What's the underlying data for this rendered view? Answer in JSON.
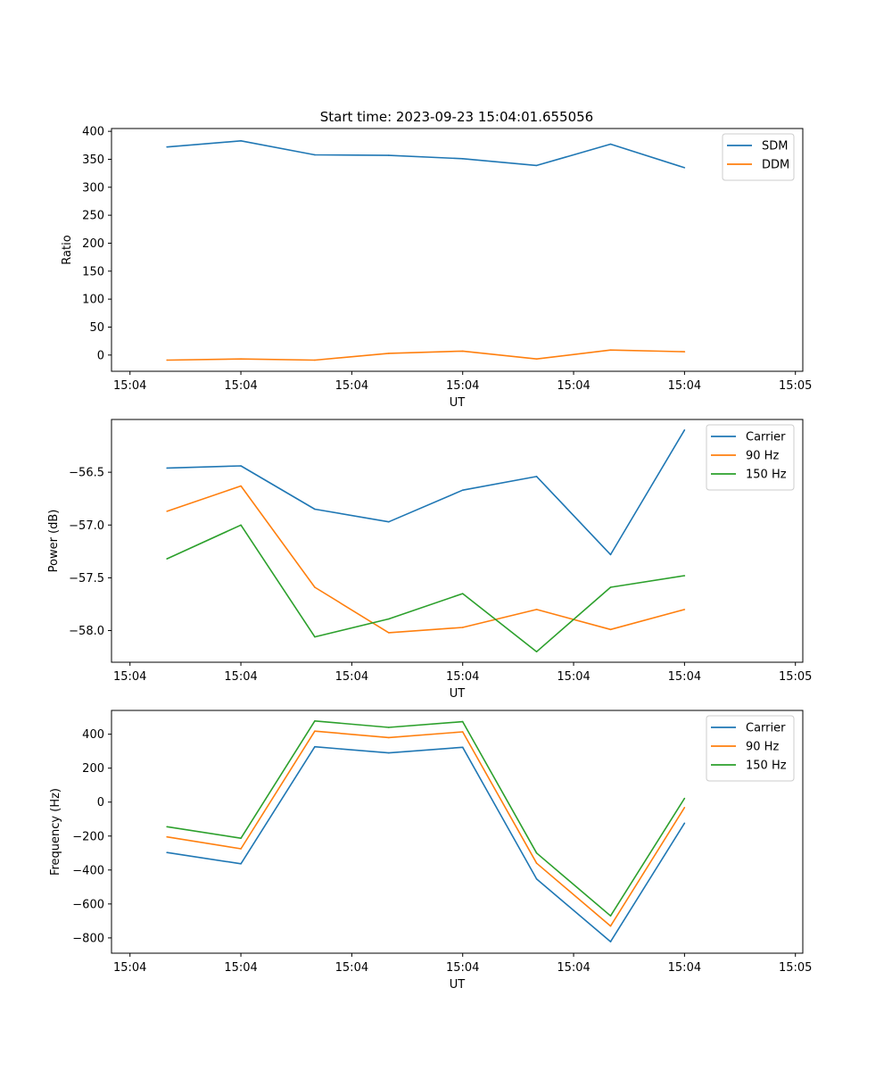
{
  "title": "Start time: 2023-09-23 15:04:01.655056",
  "colors": {
    "blue": "#1f77b4",
    "orange": "#ff7f0e",
    "green": "#2ca02c"
  },
  "chart_data": [
    {
      "type": "line",
      "id": "ratio",
      "ylabel": "Ratio",
      "xlabel": "UT",
      "ylim": [
        -29,
        405
      ],
      "yticks": [
        0,
        50,
        100,
        150,
        200,
        250,
        300,
        350,
        400
      ],
      "ytick_labels": [
        "0",
        "50",
        "100",
        "150",
        "200",
        "250",
        "300",
        "350",
        "400"
      ],
      "xlim": [
        -0.75,
        8.6
      ],
      "xticks": [
        -0.5,
        1.0,
        2.5,
        4.0,
        5.5,
        7.0,
        8.5
      ],
      "xtick_labels": [
        "15:04",
        "15:04",
        "15:04",
        "15:04",
        "15:04",
        "15:04",
        "15:05"
      ],
      "x": [
        0,
        1,
        2,
        3,
        4,
        5,
        6,
        7
      ],
      "legend_position": "top-right",
      "series": [
        {
          "name": "SDM",
          "color": "#1f77b4",
          "values": [
            372,
            383,
            358,
            357,
            351,
            339,
            377,
            335
          ]
        },
        {
          "name": "DDM",
          "color": "#ff7f0e",
          "values": [
            -9,
            -7,
            -9,
            3,
            7,
            -7,
            9,
            6
          ]
        }
      ]
    },
    {
      "type": "line",
      "id": "power",
      "ylabel": "Power (dB)",
      "xlabel": "UT",
      "ylim": [
        -58.3,
        -56.0
      ],
      "yticks": [
        -58.0,
        -57.5,
        -57.0,
        -56.5
      ],
      "ytick_labels": [
        "−58.0",
        "−57.5",
        "−57.0",
        "−56.5"
      ],
      "xlim": [
        -0.75,
        8.6
      ],
      "xticks": [
        -0.5,
        1.0,
        2.5,
        4.0,
        5.5,
        7.0,
        8.5
      ],
      "xtick_labels": [
        "15:04",
        "15:04",
        "15:04",
        "15:04",
        "15:04",
        "15:04",
        "15:05"
      ],
      "x": [
        0,
        1,
        2,
        3,
        4,
        5,
        6,
        7
      ],
      "legend_position": "top-right",
      "series": [
        {
          "name": "Carrier",
          "color": "#1f77b4",
          "values": [
            -56.46,
            -56.44,
            -56.85,
            -56.97,
            -56.67,
            -56.54,
            -57.28,
            -56.1
          ]
        },
        {
          "name": "90 Hz",
          "color": "#ff7f0e",
          "values": [
            -56.87,
            -56.63,
            -57.59,
            -58.02,
            -57.97,
            -57.8,
            -57.99,
            -57.8
          ]
        },
        {
          "name": "150 Hz",
          "color": "#2ca02c",
          "values": [
            -57.32,
            -57.0,
            -58.06,
            -57.89,
            -57.65,
            -58.2,
            -57.59,
            -57.48
          ]
        }
      ]
    },
    {
      "type": "line",
      "id": "frequency",
      "ylabel": "Frequency (Hz)",
      "xlabel": "UT",
      "ylim": [
        -890,
        540
      ],
      "yticks": [
        -800,
        -600,
        -400,
        -200,
        0,
        200,
        400
      ],
      "ytick_labels": [
        "−800",
        "−600",
        "−400",
        "−200",
        "0",
        "200",
        "400"
      ],
      "xlim": [
        -0.75,
        8.6
      ],
      "xticks": [
        -0.5,
        1.0,
        2.5,
        4.0,
        5.5,
        7.0,
        8.5
      ],
      "xtick_labels": [
        "15:04",
        "15:04",
        "15:04",
        "15:04",
        "15:04",
        "15:04",
        "15:05"
      ],
      "x": [
        0,
        1,
        2,
        3,
        4,
        5,
        6,
        7
      ],
      "legend_position": "top-right",
      "series": [
        {
          "name": "Carrier",
          "color": "#1f77b4",
          "values": [
            -297,
            -363,
            326,
            290,
            323,
            -453,
            -822,
            -124
          ]
        },
        {
          "name": "90 Hz",
          "color": "#ff7f0e",
          "values": [
            -205,
            -275,
            418,
            380,
            414,
            -360,
            -730,
            -32
          ]
        },
        {
          "name": "150 Hz",
          "color": "#2ca02c",
          "values": [
            -145,
            -213,
            478,
            440,
            474,
            -300,
            -670,
            22
          ]
        }
      ]
    }
  ]
}
